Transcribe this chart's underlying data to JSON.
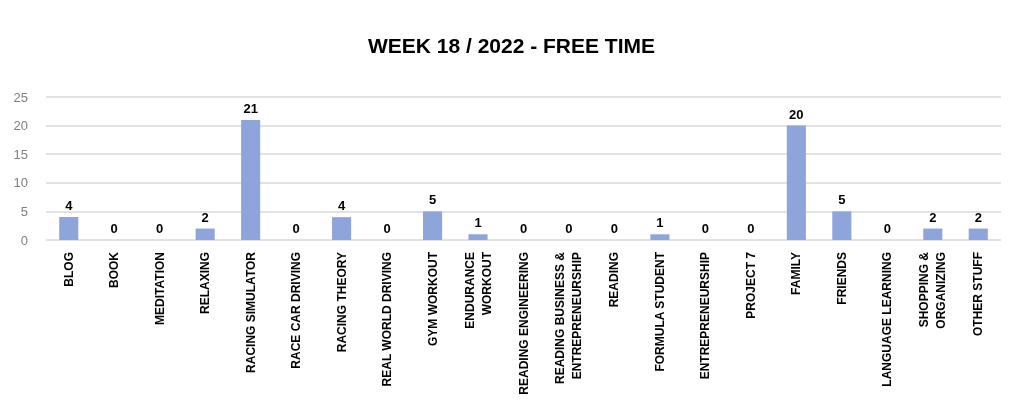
{
  "chart_data": {
    "type": "bar",
    "title": "WEEK 18 / 2022 - FREE TIME",
    "categories": [
      "BLOG",
      "BOOK",
      "MEDITATION",
      "RELAXING",
      "RACING SIMULATOR",
      "RACE CAR DRIVING",
      "RACING THEORY",
      "REAL WORLD DRIVING",
      "GYM WORKOUT",
      "ENDURANCE\nWORKOUT",
      "READING ENGINEERING",
      "READING BUSINESS &\nENTREPRENEURSHIP",
      "READING",
      "FORMULA STUDENT",
      "ENTREPRENEURSHIP",
      "PROJECT 7",
      "FAMILY",
      "FRIENDS",
      "LANGUAGE LEARNING",
      "SHOPPING &\nORGANIZING",
      "OTHER STUFF"
    ],
    "values": [
      4,
      0,
      0,
      2,
      21,
      0,
      4,
      0,
      5,
      1,
      0,
      0,
      0,
      1,
      0,
      0,
      20,
      5,
      0,
      2,
      2
    ],
    "color": "#8ea5dc",
    "ylim": [
      0,
      25
    ],
    "yticks": [
      0,
      5,
      10,
      15,
      20,
      25
    ],
    "grid": "y",
    "data_labels": true
  }
}
